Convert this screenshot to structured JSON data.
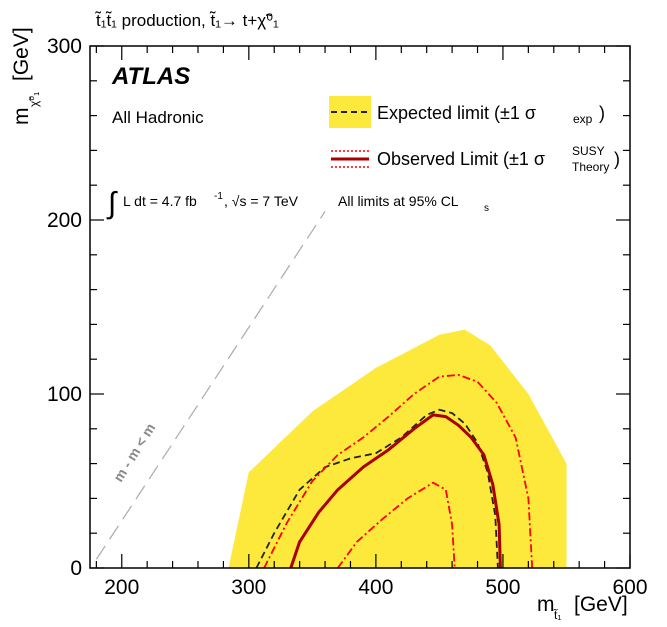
{
  "chart_data": {
    "type": "line",
    "title": "t̃₁t̃₁ production, t̃₁→ t+χ̃⁰₁",
    "xlabel": "m",
    "xlabel_sub": "t̃₁",
    "xlabel_unit": "[GeV]",
    "ylabel": "m",
    "ylabel_sub": "χ̃⁰₁",
    "ylabel_unit": "[GeV]",
    "xlim": [
      175,
      600
    ],
    "ylim": [
      0,
      300
    ],
    "xticks": [
      200,
      300,
      400,
      500,
      600
    ],
    "yticks": [
      0,
      100,
      200,
      300
    ],
    "grid": false,
    "legend_position": "top-right",
    "annotations": {
      "experiment": "ATLAS",
      "channel": "All Hadronic",
      "lumi_int": "∫",
      "lumi_text": "L dt = 4.7 fb",
      "lumi_exp": "-1",
      "lumi_sep": ", √s = 7 TeV",
      "cl_text": "All limits at 95% CL",
      "cl_sub": "s",
      "diagonal_label": "m  - m    < m",
      "diagonal_sub1": "t̃",
      "diagonal_sub2": "χ̃⁰₁",
      "diagonal_sub3": "t"
    },
    "legend": [
      {
        "name": "Expected limit (±1 σ",
        "sub": "exp",
        "close": ")",
        "color": "#222222",
        "band": "#fde93c"
      },
      {
        "name": "Observed Limit (±1 σ",
        "sup": "SUSY",
        "sub": "Theory",
        "close": ")",
        "color": "#aa0000",
        "band_line": "#ff0000"
      }
    ],
    "series": [
      {
        "name": "Expected limit ±1σ band",
        "kind": "band",
        "color": "#fde93c",
        "x": [
          284,
          300,
          350,
          400,
          450,
          470,
          490,
          520,
          550,
          550,
          284
        ],
        "y": [
          0,
          55,
          90,
          115,
          134,
          137,
          128,
          100,
          60,
          0,
          0
        ]
      },
      {
        "name": "Expected limit",
        "kind": "line",
        "color": "#222222",
        "style": "dash",
        "x": [
          306,
          320,
          340,
          360,
          380,
          400,
          420,
          440,
          450,
          460,
          470,
          480,
          488,
          494,
          496
        ],
        "y": [
          0,
          20,
          45,
          58,
          63,
          66,
          75,
          88,
          91,
          89,
          83,
          72,
          55,
          30,
          0
        ]
      },
      {
        "name": "Observed limit",
        "kind": "line",
        "color": "#aa0000",
        "style": "solid",
        "x": [
          333,
          340,
          355,
          370,
          390,
          410,
          430,
          445,
          455,
          465,
          475,
          485,
          492,
          497,
          498
        ],
        "y": [
          0,
          15,
          32,
          45,
          58,
          68,
          80,
          88,
          87,
          82,
          75,
          65,
          48,
          25,
          0
        ]
      },
      {
        "name": "Observed limit +1σ theory",
        "kind": "line",
        "color": "#ff0000",
        "style": "dashdot",
        "x": [
          312,
          330,
          350,
          370,
          390,
          410,
          430,
          450,
          465,
          480,
          495,
          510,
          520,
          523
        ],
        "y": [
          0,
          26,
          50,
          65,
          75,
          87,
          100,
          110,
          111,
          107,
          95,
          75,
          40,
          0
        ]
      },
      {
        "name": "Observed limit -1σ theory",
        "kind": "line",
        "color": "#ff0000",
        "style": "dashdot",
        "x": [
          370,
          385,
          405,
          425,
          445,
          455,
          460,
          462
        ],
        "y": [
          0,
          15,
          28,
          40,
          49,
          45,
          25,
          0
        ]
      },
      {
        "name": "Kinematic limit",
        "kind": "line",
        "color": "#aaaaaa",
        "style": "longdash",
        "x": [
          180,
          360
        ],
        "y": [
          5,
          205
        ]
      }
    ]
  }
}
